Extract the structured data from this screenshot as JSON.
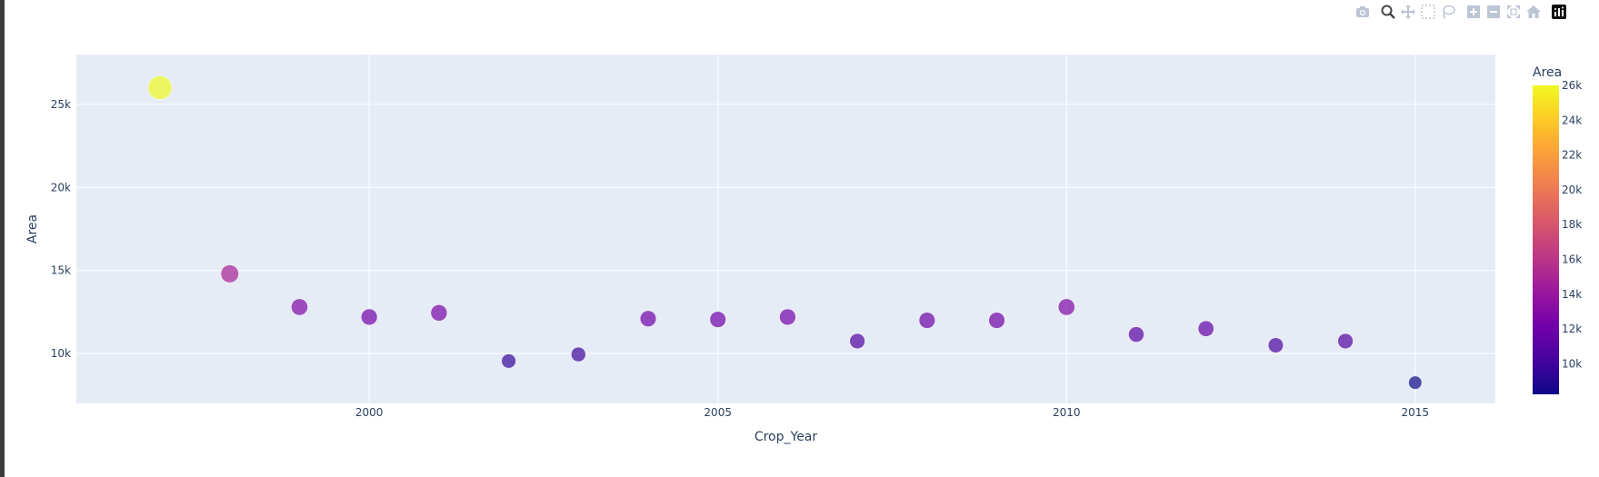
{
  "toolbar": {
    "buttons": [
      {
        "name": "camera-icon",
        "label": "Download plot as a png"
      },
      {
        "name": "zoom-icon",
        "label": "Zoom"
      },
      {
        "name": "pan-icon",
        "label": "Pan"
      },
      {
        "name": "box-select-icon",
        "label": "Box Select"
      },
      {
        "name": "lasso-select-icon",
        "label": "Lasso Select"
      },
      {
        "name": "zoom-in-icon",
        "label": "Zoom in"
      },
      {
        "name": "zoom-out-icon",
        "label": "Zoom out"
      },
      {
        "name": "autoscale-icon",
        "label": "Autoscale"
      },
      {
        "name": "reset-axes-icon",
        "label": "Reset axes"
      },
      {
        "name": "plotly-logo-icon",
        "label": "Produced with Plotly"
      }
    ],
    "active": "zoom-icon"
  },
  "chart_data": {
    "type": "scatter",
    "xlabel": "Crop_Year",
    "ylabel": "Area",
    "x_ticks": [
      2000,
      2005,
      2010,
      2015
    ],
    "y_ticks": [
      10000,
      15000,
      20000,
      25000
    ],
    "y_tick_labels": [
      "10k",
      "15k",
      "20k",
      "25k"
    ],
    "xlim": [
      1995.8,
      2016.15
    ],
    "ylim": [
      7000,
      28000
    ],
    "grid": true,
    "marker_size_encodes": "Area",
    "points": [
      {
        "x": 1997,
        "y": 26000
      },
      {
        "x": 1998,
        "y": 14800
      },
      {
        "x": 1999,
        "y": 12800
      },
      {
        "x": 2000,
        "y": 12200
      },
      {
        "x": 2001,
        "y": 12450
      },
      {
        "x": 2002,
        "y": 9550
      },
      {
        "x": 2003,
        "y": 9950
      },
      {
        "x": 2004,
        "y": 12100
      },
      {
        "x": 2005,
        "y": 12050
      },
      {
        "x": 2006,
        "y": 12200
      },
      {
        "x": 2007,
        "y": 10750
      },
      {
        "x": 2008,
        "y": 12000
      },
      {
        "x": 2009,
        "y": 12000
      },
      {
        "x": 2010,
        "y": 12800
      },
      {
        "x": 2011,
        "y": 11150
      },
      {
        "x": 2012,
        "y": 11500
      },
      {
        "x": 2013,
        "y": 10500
      },
      {
        "x": 2014,
        "y": 10750
      },
      {
        "x": 2015,
        "y": 8250
      }
    ],
    "colorbar": {
      "title": "Area",
      "range": [
        8250,
        26000
      ],
      "ticks": [
        10000,
        12000,
        14000,
        16000,
        18000,
        20000,
        22000,
        24000,
        26000
      ],
      "tick_labels": [
        "10k",
        "12k",
        "14k",
        "16k",
        "18k",
        "20k",
        "22k",
        "24k",
        "26k"
      ],
      "colorscale": [
        "#0d0887",
        "#46039f",
        "#7201a8",
        "#9c179e",
        "#bd3786",
        "#d8576b",
        "#ed7953",
        "#fb9f3a",
        "#fdca26",
        "#f0f921"
      ]
    },
    "colors": {
      "plot_bg": "#e5ecf6",
      "grid": "#ffffff",
      "text": "#2a3f5f"
    }
  }
}
